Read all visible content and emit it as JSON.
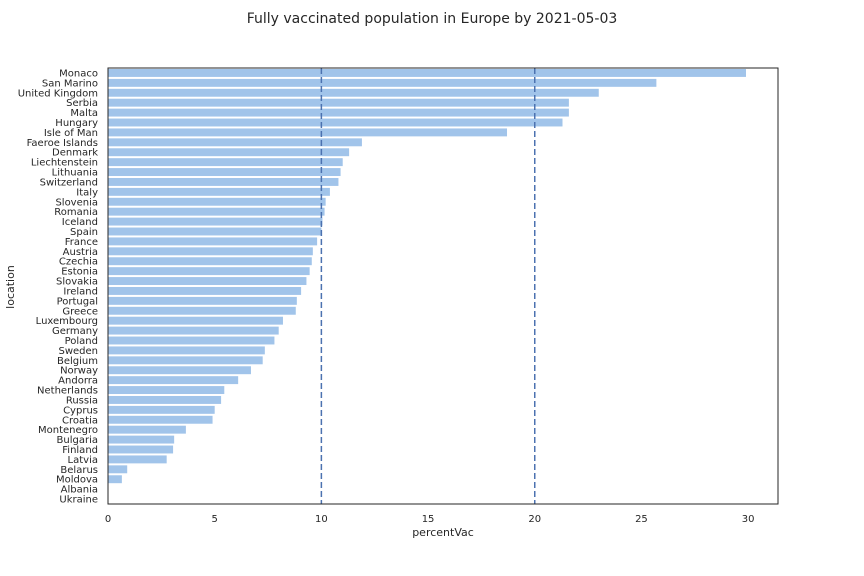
{
  "chart_data": {
    "type": "bar",
    "orientation": "horizontal",
    "title": "Fully vaccinated population in Europe by 2021-05-03",
    "xlabel": "percentVac",
    "ylabel": "location",
    "xlim": [
      0,
      31.4
    ],
    "xticks": [
      0,
      5,
      10,
      15,
      20,
      25,
      30
    ],
    "grid": false,
    "bar_color": "#a1c4ea",
    "reference_lines": {
      "values": [
        10,
        20
      ],
      "color": "#4c72b0",
      "style": "dashed"
    },
    "categories": [
      "Monaco",
      "San Marino",
      "United Kingdom",
      "Serbia",
      "Malta",
      "Hungary",
      "Isle of Man",
      "Faeroe Islands",
      "Denmark",
      "Liechtenstein",
      "Lithuania",
      "Switzerland",
      "Italy",
      "Slovenia",
      "Romania",
      "Iceland",
      "Spain",
      "France",
      "Austria",
      "Czechia",
      "Estonia",
      "Slovakia",
      "Ireland",
      "Portugal",
      "Greece",
      "Luxembourg",
      "Germany",
      "Poland",
      "Sweden",
      "Belgium",
      "Norway",
      "Andorra",
      "Netherlands",
      "Russia",
      "Cyprus",
      "Croatia",
      "Montenegro",
      "Bulgaria",
      "Finland",
      "Latvia",
      "Belarus",
      "Moldova",
      "Albania",
      "Ukraine"
    ],
    "values": [
      29.9,
      25.7,
      23.0,
      21.6,
      21.6,
      21.3,
      18.7,
      11.9,
      11.3,
      11.0,
      10.9,
      10.8,
      10.4,
      10.2,
      10.15,
      10.05,
      10.0,
      9.8,
      9.6,
      9.55,
      9.45,
      9.3,
      9.05,
      8.85,
      8.8,
      8.2,
      8.0,
      7.8,
      7.35,
      7.25,
      6.7,
      6.1,
      5.45,
      5.3,
      5.0,
      4.9,
      3.65,
      3.1,
      3.05,
      2.75,
      0.9,
      0.65,
      0.0,
      0.0
    ]
  }
}
